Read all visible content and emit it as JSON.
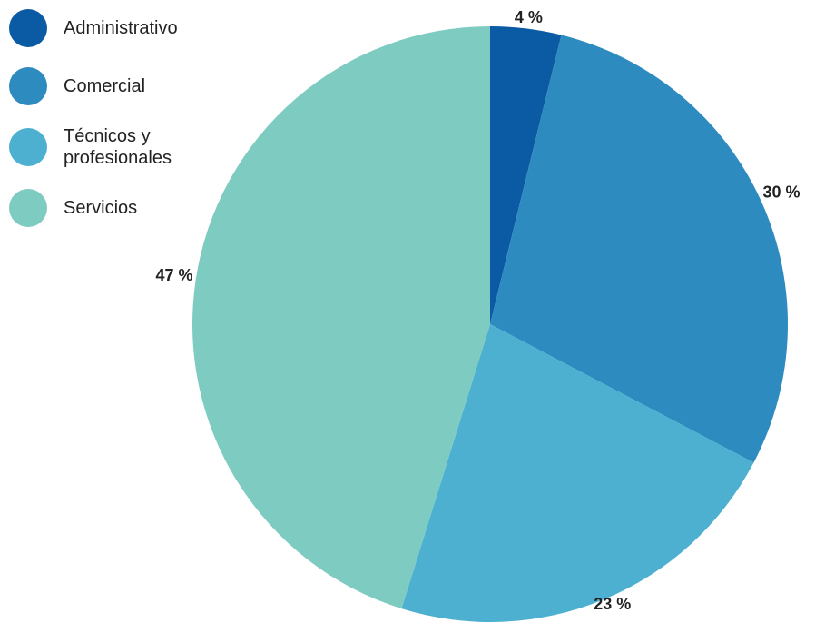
{
  "chart_data": {
    "type": "pie",
    "categories": [
      "Administrativo",
      "Comercial",
      "Técnicos y profesionales",
      "Servicios"
    ],
    "values": [
      4,
      30,
      23,
      47
    ],
    "value_labels": [
      "4 %",
      "30 %",
      "23 %",
      "47 %"
    ],
    "colors": [
      "#0a5ba3",
      "#2e8bc0",
      "#4db0d1",
      "#7ecbc1"
    ]
  }
}
